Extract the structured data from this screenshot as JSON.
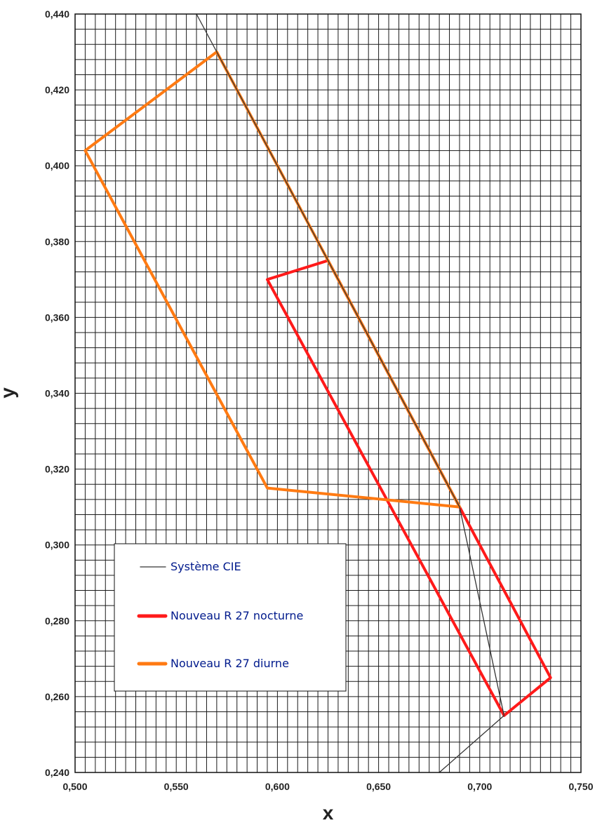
{
  "chart_data": {
    "type": "line",
    "xlabel": "x",
    "ylabel": "y",
    "xlim": [
      0.5,
      0.75
    ],
    "ylim": [
      0.24,
      0.44
    ],
    "grid": true,
    "x_ticks": [
      "0,500",
      "0,550",
      "0,600",
      "0,650",
      "0,700",
      "0,750"
    ],
    "y_ticks": [
      "0,240",
      "0,260",
      "0,280",
      "0,300",
      "0,320",
      "0,340",
      "0,360",
      "0,380",
      "0,400",
      "0,420",
      "0,440"
    ],
    "legend_position": "bottom-left",
    "series": [
      {
        "name": "Système CIE",
        "color": "#333333",
        "closed": false,
        "points": [
          [
            0.56,
            0.44
          ],
          [
            0.57,
            0.43
          ],
          [
            0.625,
            0.375
          ],
          [
            0.69,
            0.31
          ],
          [
            0.712,
            0.255
          ],
          [
            0.68,
            0.24
          ]
        ]
      },
      {
        "name": "Nouveau R 27 nocturne",
        "color": "#ff1a1a",
        "closed": true,
        "points": [
          [
            0.595,
            0.37
          ],
          [
            0.625,
            0.375
          ],
          [
            0.69,
            0.31
          ],
          [
            0.735,
            0.265
          ],
          [
            0.712,
            0.255
          ]
        ]
      },
      {
        "name": "Nouveau R 27 diurne",
        "color": "#ff7a12",
        "closed": true,
        "points": [
          [
            0.57,
            0.43
          ],
          [
            0.69,
            0.31
          ],
          [
            0.595,
            0.315
          ],
          [
            0.505,
            0.404
          ]
        ]
      }
    ]
  }
}
